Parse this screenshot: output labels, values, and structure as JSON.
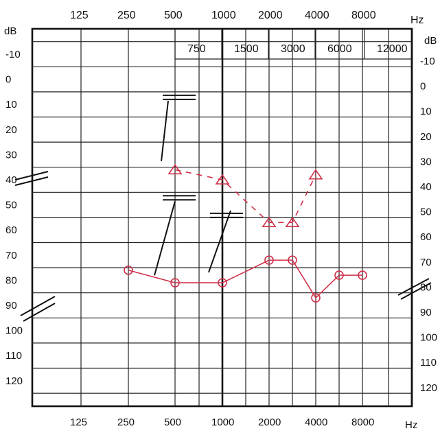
{
  "chart_data": {
    "type": "line",
    "title": "",
    "x_unit_label": "Hz",
    "y_unit_label": "dB",
    "x_top_ticks": [
      "125",
      "250",
      "500",
      "1000",
      "2000",
      "4000",
      "8000"
    ],
    "x_mid_ticks": [
      "750",
      "1500",
      "3000",
      "6000",
      "12000"
    ],
    "x_bottom_ticks": [
      "125",
      "250",
      "500",
      "1000",
      "2000",
      "4000",
      "8000"
    ],
    "y_ticks": [
      "-10",
      "0",
      "10",
      "20",
      "30",
      "40",
      "50",
      "60",
      "70",
      "80",
      "90",
      "100",
      "110",
      "120"
    ],
    "ylim": [
      -10,
      120
    ],
    "y_inverted": true,
    "grid": true,
    "series": [
      {
        "marker": "circle",
        "color": "#d0304a",
        "style": "solid",
        "points": [
          {
            "x": 250,
            "y": 76
          },
          {
            "x": 500,
            "y": 81
          },
          {
            "x": 1000,
            "y": 81
          },
          {
            "x": 2000,
            "y": 72
          },
          {
            "x": 3000,
            "y": 72
          },
          {
            "x": 4000,
            "y": 87
          },
          {
            "x": 6000,
            "y": 78
          },
          {
            "x": 8000,
            "y": 78
          }
        ]
      },
      {
        "marker": "triangle",
        "color": "#d0304a",
        "style": "dashed",
        "points": [
          {
            "x": 500,
            "y": 36
          },
          {
            "x": 1000,
            "y": 40
          },
          {
            "x": 2000,
            "y": 57
          },
          {
            "x": 3000,
            "y": 57
          },
          {
            "x": 4000,
            "y": 38
          }
        ]
      },
      {
        "marker": "bracket",
        "color": "#111111",
        "style": "solid",
        "points": [
          {
            "x": 500,
            "y": 8
          },
          {
            "x": 500,
            "y": 48
          },
          {
            "x": 1000,
            "y": 55
          }
        ]
      }
    ]
  }
}
